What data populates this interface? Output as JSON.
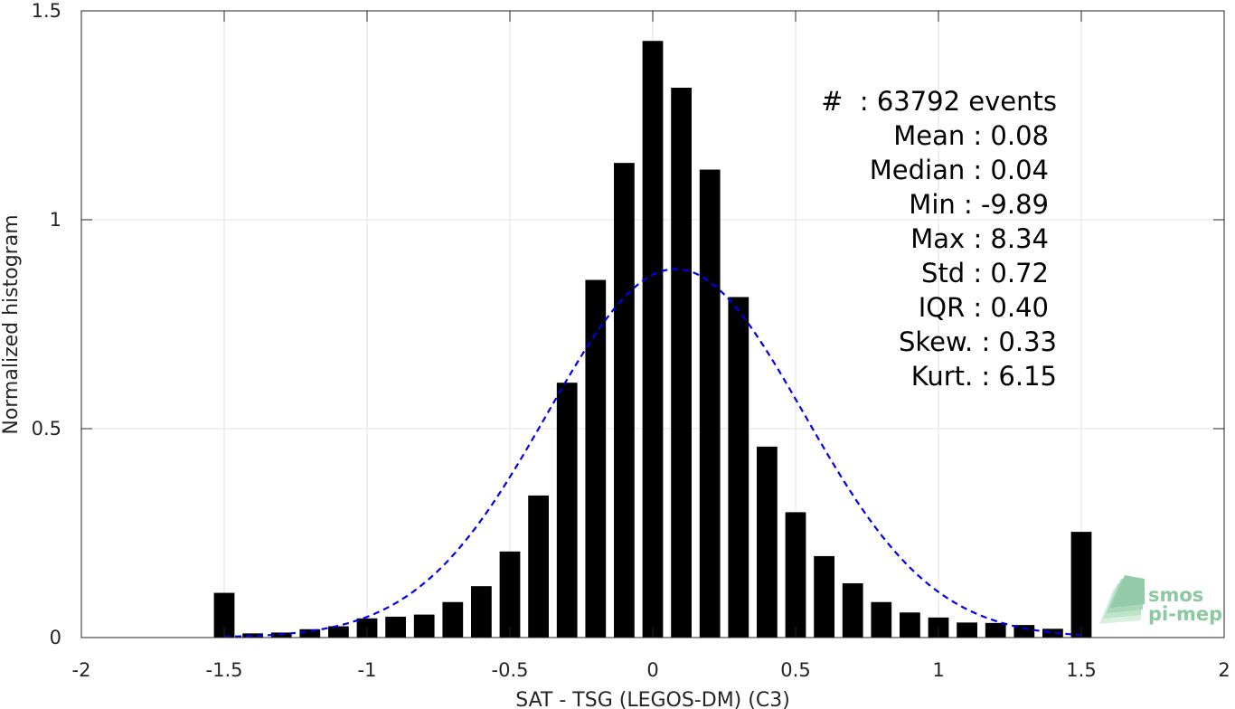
{
  "chart_data": {
    "type": "bar",
    "xlabel": "SAT - TSG (LEGOS-DM) (C3)",
    "ylabel": "Normalized histogram",
    "xlim": [
      -2,
      2
    ],
    "ylim": [
      0,
      1.5
    ],
    "xticks": [
      -2,
      -1.5,
      -1,
      -0.5,
      0,
      0.5,
      1,
      1.5,
      2
    ],
    "xtick_labels": [
      "-2",
      "-1.5",
      "-1",
      "-0.5",
      "0",
      "0.5",
      "1",
      "1.5",
      "2"
    ],
    "yticks": [
      0,
      0.5,
      1,
      1.5
    ],
    "ytick_labels": [
      "0",
      "0.5",
      "1",
      "1.5"
    ],
    "grid": true,
    "bin_width": 0.1,
    "bars": {
      "x": [
        -1.5,
        -1.4,
        -1.3,
        -1.2,
        -1.1,
        -1.0,
        -0.9,
        -0.8,
        -0.7,
        -0.6,
        -0.5,
        -0.4,
        -0.3,
        -0.2,
        -0.1,
        0.0,
        0.1,
        0.2,
        0.3,
        0.4,
        0.5,
        0.6,
        0.7,
        0.8,
        0.9,
        1.0,
        1.1,
        1.2,
        1.3,
        1.4,
        1.5
      ],
      "values": [
        0.107,
        0.01,
        0.012,
        0.02,
        0.027,
        0.046,
        0.05,
        0.055,
        0.085,
        0.123,
        0.206,
        0.34,
        0.61,
        0.856,
        1.136,
        1.428,
        1.316,
        1.12,
        0.815,
        0.457,
        0.3,
        0.195,
        0.13,
        0.085,
        0.06,
        0.048,
        0.036,
        0.035,
        0.03,
        0.021,
        0.253
      ],
      "color": "#000000"
    },
    "fit_curve": {
      "style": "dashed",
      "color": "#0000ee",
      "mean": 0.08,
      "std": 0.45,
      "peak": 0.882,
      "x_range": [
        -1.5,
        1.5
      ]
    },
    "annotations": [
      "#  : 63792 events",
      "Mean : 0.08",
      "Median : 0.04",
      "Min : -9.89",
      "Max : 8.34",
      "Std : 0.72",
      "IQR : 0.40",
      "Skew. : 0.33",
      "Kurt. : 6.15"
    ]
  },
  "logo": {
    "line1": "smos",
    "line2": "pi-mep",
    "color": "#8cc9a0"
  }
}
